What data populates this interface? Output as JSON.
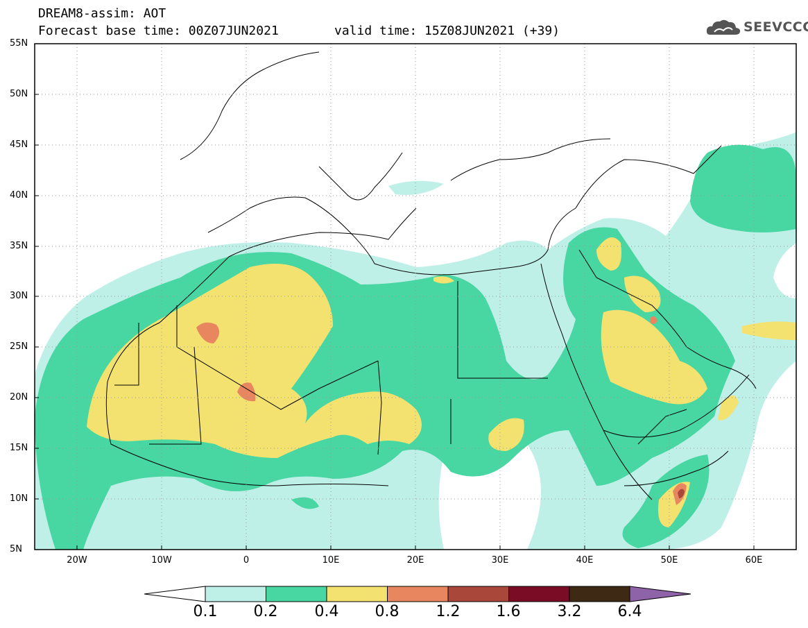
{
  "header": {
    "title_line1": "DREAM8-assim: AOT",
    "title_line2": "Forecast base time: 00Z07JUN2021",
    "valid_time": "valid time: 15Z08JUN2021 (+39)",
    "logo_text": "SEEVCCC"
  },
  "map": {
    "lon_labels": [
      "20W",
      "10W",
      "0",
      "10E",
      "20E",
      "30E",
      "40E",
      "50E",
      "60E"
    ],
    "lat_labels": [
      "55N",
      "50N",
      "45N",
      "40N",
      "35N",
      "30N",
      "25N",
      "20N",
      "15N",
      "10N",
      "5N"
    ],
    "extent": {
      "lon": [
        -25,
        65
      ],
      "lat": [
        5,
        55
      ]
    },
    "gridlines": "dotted"
  },
  "colorbar": {
    "labels": [
      "0.1",
      "0.2",
      "0.4",
      "0.8",
      "1.2",
      "1.6",
      "3.2",
      "6.4"
    ],
    "colors": [
      "#bff0e8",
      "#48d6a2",
      "#f3e26f",
      "#e8875f",
      "#a8473a",
      "#7a0c25",
      "#3e2a14",
      "#8f63a8"
    ],
    "under_color": "#ffffff"
  }
}
